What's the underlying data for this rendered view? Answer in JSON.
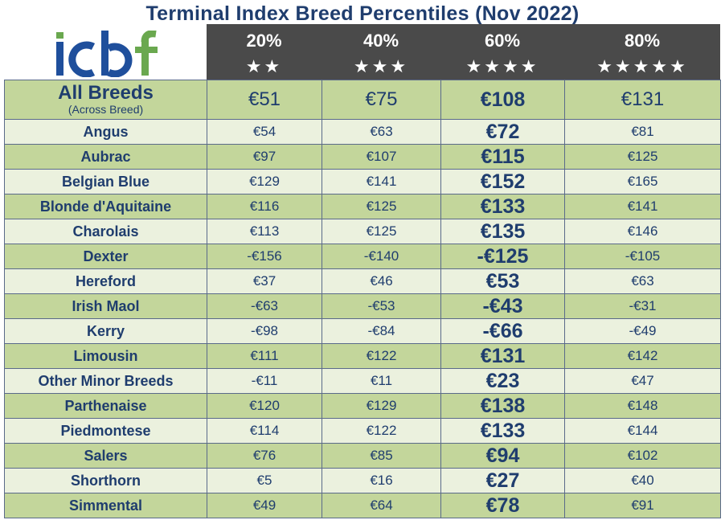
{
  "title": "Terminal Index Breed Percentiles (Nov 2022)",
  "logo_text": "icbf",
  "colors": {
    "dark_green": "#c3d69b",
    "light_green": "#ebf1de",
    "header_bg": "#4a4a4a",
    "text_navy": "#1f3d6e",
    "logo_blue": "#1f4f9c",
    "logo_green": "#6aa84f"
  },
  "columns": [
    {
      "pct": "20%",
      "stars": "★★"
    },
    {
      "pct": "40%",
      "stars": "★★★"
    },
    {
      "pct": "60%",
      "stars": "★★★★"
    },
    {
      "pct": "80%",
      "stars": "★★★★★"
    }
  ],
  "all_breeds": {
    "name": "All Breeds",
    "sub": "(Across Breed)",
    "values": [
      "€51",
      "€75",
      "€108",
      "€131"
    ]
  },
  "rows": [
    {
      "name": "Angus",
      "values": [
        "€54",
        "€63",
        "€72",
        "€81"
      ]
    },
    {
      "name": "Aubrac",
      "values": [
        "€97",
        "€107",
        "€115",
        "€125"
      ]
    },
    {
      "name": "Belgian Blue",
      "values": [
        "€129",
        "€141",
        "€152",
        "€165"
      ]
    },
    {
      "name": "Blonde d'Aquitaine",
      "values": [
        "€116",
        "€125",
        "€133",
        "€141"
      ]
    },
    {
      "name": "Charolais",
      "values": [
        "€113",
        "€125",
        "€135",
        "€146"
      ]
    },
    {
      "name": "Dexter",
      "values": [
        "-€156",
        "-€140",
        "-€125",
        "-€105"
      ]
    },
    {
      "name": "Hereford",
      "values": [
        "€37",
        "€46",
        "€53",
        "€63"
      ]
    },
    {
      "name": "Irish Maol",
      "values": [
        "-€63",
        "-€53",
        "-€43",
        "-€31"
      ]
    },
    {
      "name": "Kerry",
      "values": [
        "-€98",
        "-€84",
        "-€66",
        "-€49"
      ]
    },
    {
      "name": "Limousin",
      "values": [
        "€111",
        "€122",
        "€131",
        "€142"
      ]
    },
    {
      "name": "Other Minor Breeds",
      "values": [
        "-€11",
        "€11",
        "€23",
        "€47"
      ]
    },
    {
      "name": "Parthenaise",
      "values": [
        "€120",
        "€129",
        "€138",
        "€148"
      ]
    },
    {
      "name": "Piedmontese",
      "values": [
        "€114",
        "€122",
        "€133",
        "€144"
      ]
    },
    {
      "name": "Salers",
      "values": [
        "€76",
        "€85",
        "€94",
        "€102"
      ]
    },
    {
      "name": "Shorthorn",
      "values": [
        "€5",
        "€16",
        "€27",
        "€40"
      ]
    },
    {
      "name": "Simmental",
      "values": [
        "€49",
        "€64",
        "€78",
        "€91"
      ]
    }
  ],
  "chart_data": {
    "type": "table",
    "title": "Terminal Index Breed Percentiles (Nov 2022)",
    "columns": [
      "20%",
      "40%",
      "60%",
      "80%"
    ],
    "rows": [
      {
        "breed": "All Breeds",
        "values": [
          51,
          75,
          108,
          131
        ]
      },
      {
        "breed": "Angus",
        "values": [
          54,
          63,
          72,
          81
        ]
      },
      {
        "breed": "Aubrac",
        "values": [
          97,
          107,
          115,
          125
        ]
      },
      {
        "breed": "Belgian Blue",
        "values": [
          129,
          141,
          152,
          165
        ]
      },
      {
        "breed": "Blonde d'Aquitaine",
        "values": [
          116,
          125,
          133,
          141
        ]
      },
      {
        "breed": "Charolais",
        "values": [
          113,
          125,
          135,
          146
        ]
      },
      {
        "breed": "Dexter",
        "values": [
          -156,
          -140,
          -125,
          -105
        ]
      },
      {
        "breed": "Hereford",
        "values": [
          37,
          46,
          53,
          63
        ]
      },
      {
        "breed": "Irish Maol",
        "values": [
          -63,
          -53,
          -43,
          -31
        ]
      },
      {
        "breed": "Kerry",
        "values": [
          -98,
          -84,
          -66,
          -49
        ]
      },
      {
        "breed": "Limousin",
        "values": [
          111,
          122,
          131,
          142
        ]
      },
      {
        "breed": "Other Minor Breeds",
        "values": [
          -11,
          11,
          23,
          47
        ]
      },
      {
        "breed": "Parthenaise",
        "values": [
          120,
          129,
          138,
          148
        ]
      },
      {
        "breed": "Piedmontese",
        "values": [
          114,
          122,
          133,
          144
        ]
      },
      {
        "breed": "Salers",
        "values": [
          76,
          85,
          94,
          102
        ]
      },
      {
        "breed": "Shorthorn",
        "values": [
          5,
          16,
          27,
          40
        ]
      },
      {
        "breed": "Simmental",
        "values": [
          49,
          64,
          78,
          91
        ]
      }
    ]
  }
}
